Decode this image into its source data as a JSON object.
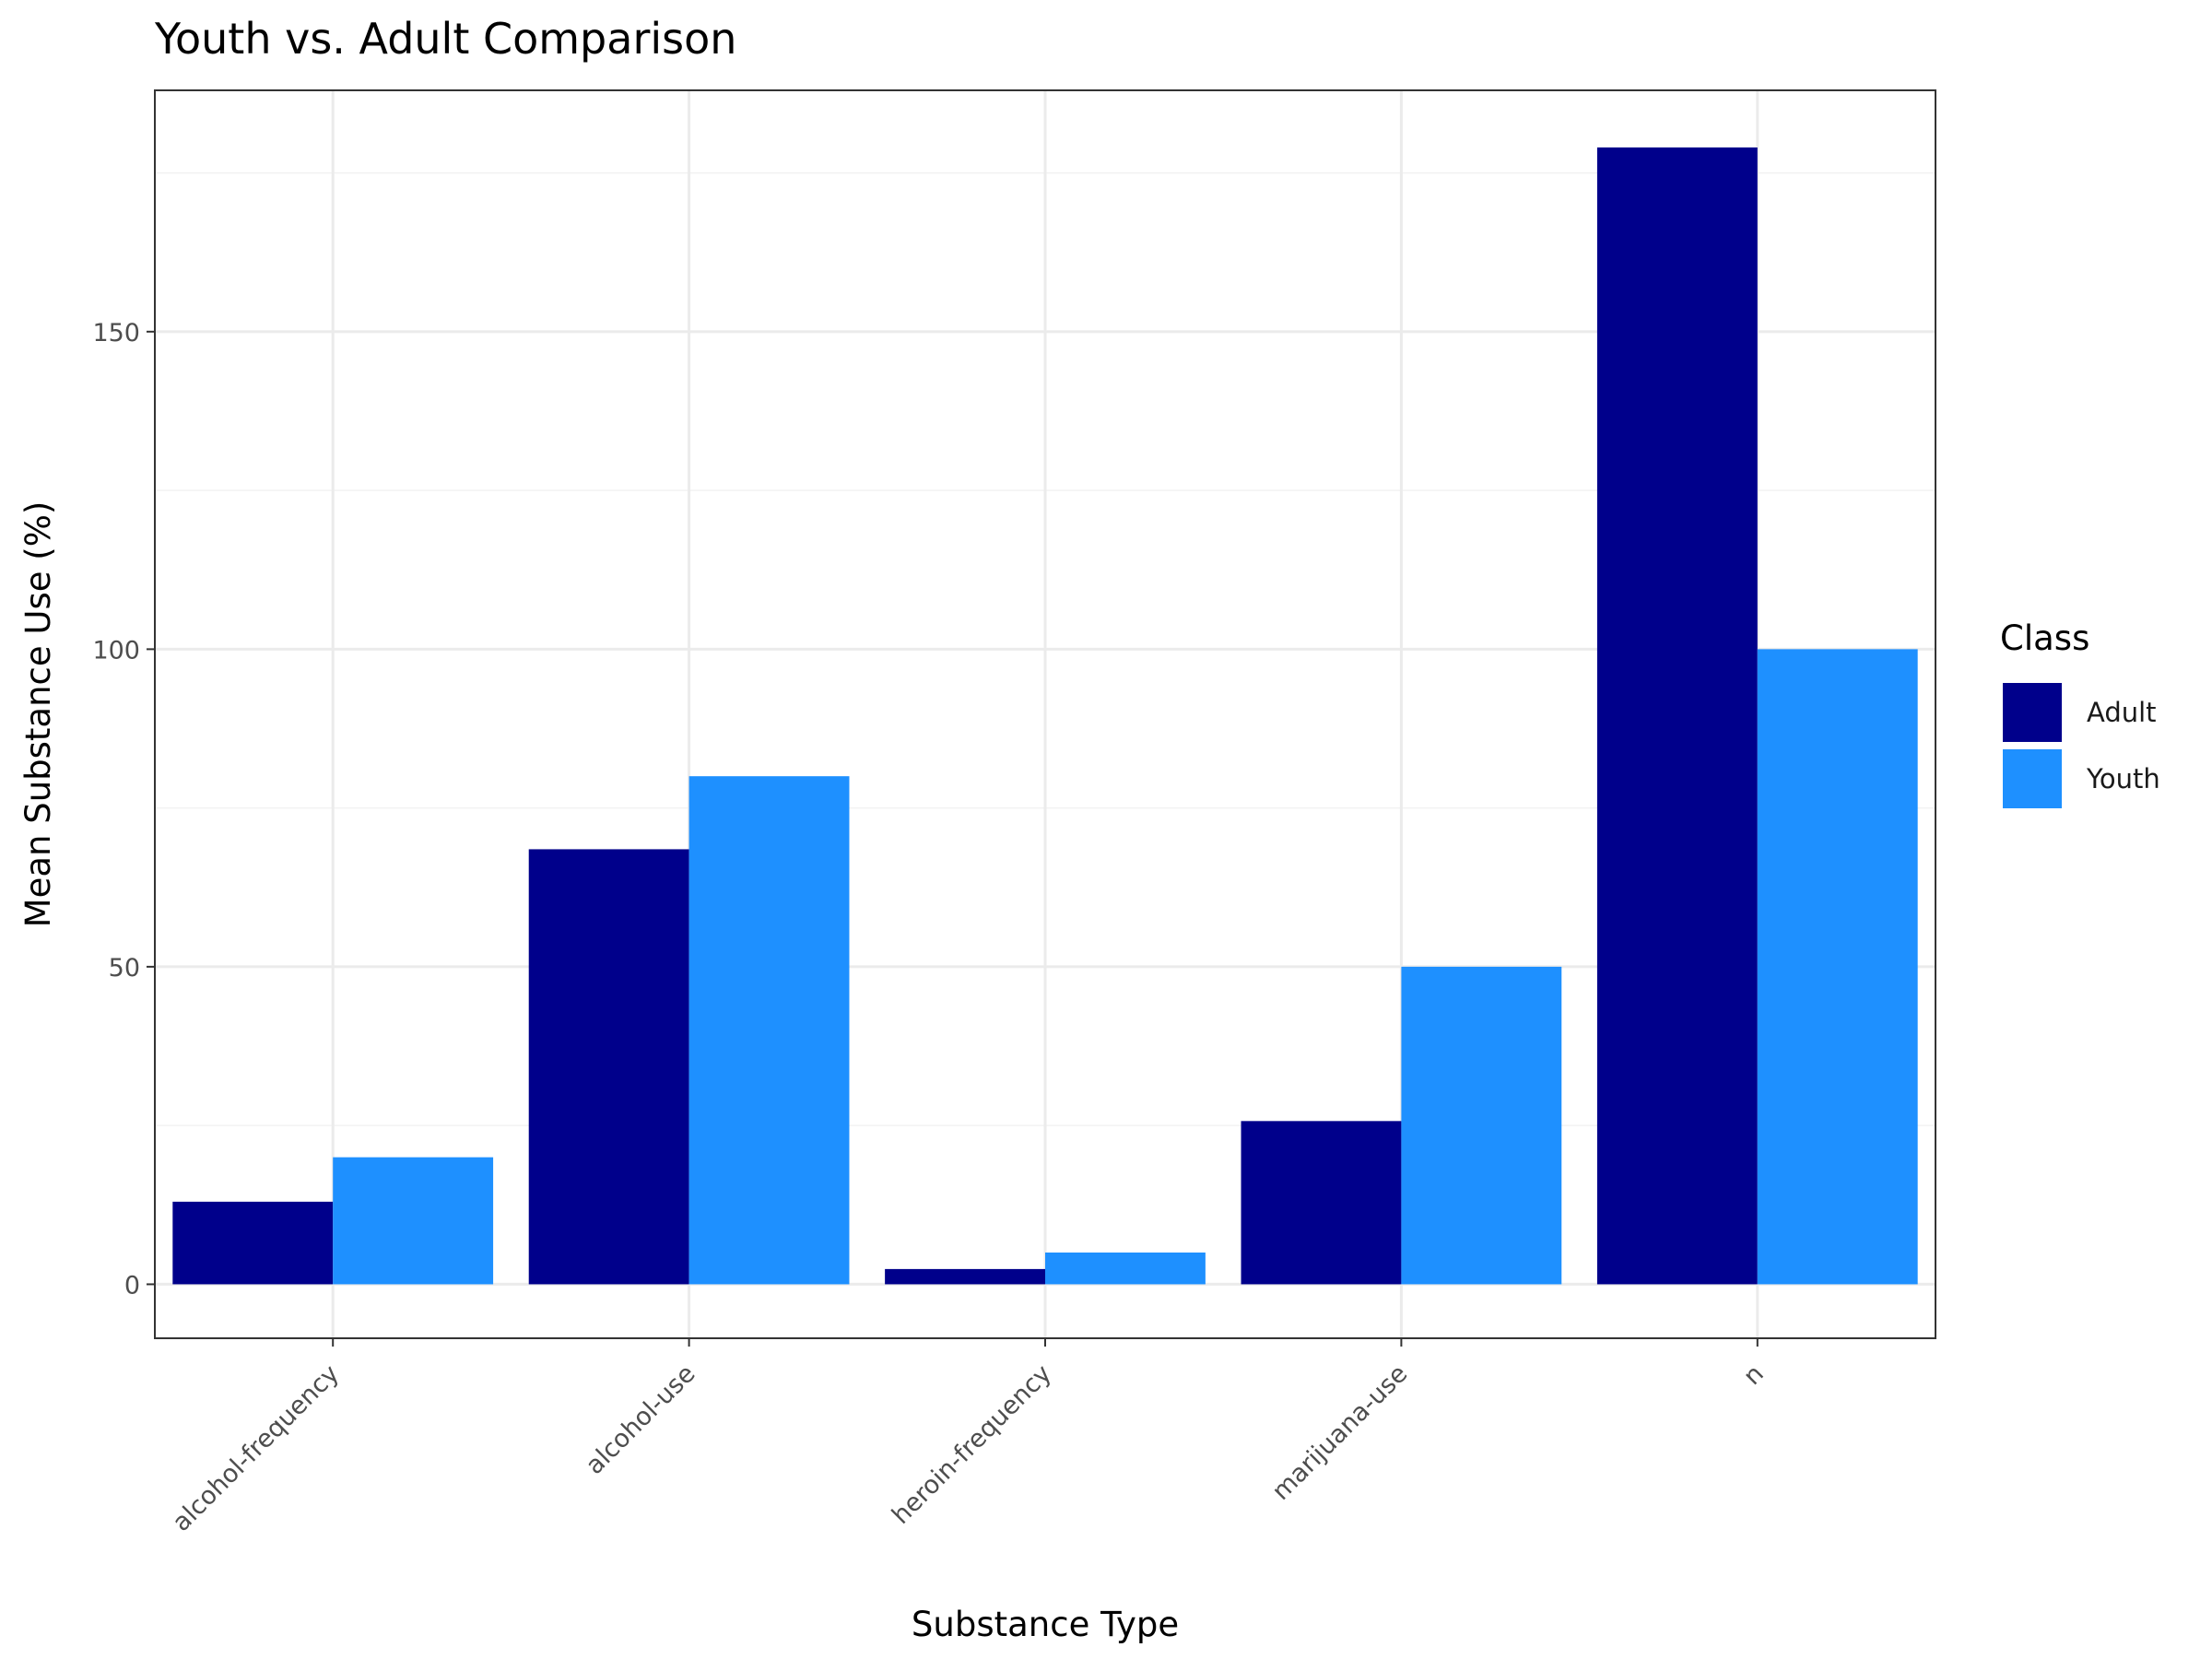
{
  "chart_data": {
    "type": "bar",
    "title": "Youth vs. Adult Comparison",
    "xlabel": "Substance Type",
    "ylabel": "Mean Substance Use (%)",
    "categories": [
      "alcohol-frequency",
      "alcohol-use",
      "heroin-frequency",
      "marijuana-use",
      "n"
    ],
    "series": [
      {
        "name": "Adult",
        "color": "#00008b",
        "values": [
          13,
          68.5,
          2.4,
          25.7,
          179
        ]
      },
      {
        "name": "Youth",
        "color": "#1e90ff",
        "values": [
          20,
          80,
          5,
          50,
          100
        ]
      }
    ],
    "ylim": [
      -8.5,
      188
    ],
    "yticks": [
      0,
      50,
      100,
      150
    ],
    "grid": true,
    "legend": {
      "title": "Class",
      "placement": "right"
    }
  }
}
